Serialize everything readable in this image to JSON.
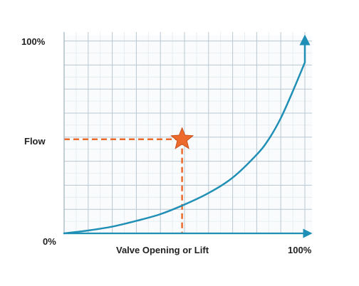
{
  "chart_data": {
    "type": "line",
    "x_range": [
      0,
      100
    ],
    "y_range": [
      0,
      100
    ],
    "grid": true,
    "xlabel": "Valve Opening or Lift",
    "ylabel": "Flow",
    "x_ticks": [
      "0%",
      "100%"
    ],
    "y_ticks": [
      "0%",
      "100%"
    ],
    "series": [
      {
        "x": [
          0,
          10,
          20,
          30,
          40,
          50,
          60,
          70,
          80,
          85,
          90,
          95,
          100
        ],
        "y": [
          0,
          1.5,
          3.5,
          6.5,
          10,
          15,
          21,
          29,
          41,
          49,
          60,
          74,
          89
        ]
      }
    ],
    "marker": {
      "x": 49,
      "y": 49,
      "shape": "star"
    },
    "colors": {
      "curve": "#1f8fb5",
      "axis": "#1f8fb5",
      "marker": "#ec6a2c",
      "guide": "#ec6a2c",
      "grid_major": "#b9c8d2",
      "grid_minor": "#e3ebf0"
    }
  }
}
